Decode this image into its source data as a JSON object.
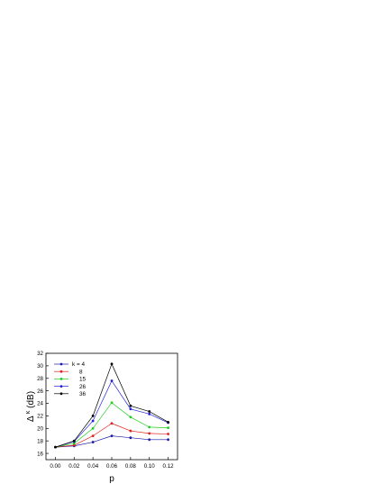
{
  "chart_data": {
    "type": "line",
    "xlabel": "p",
    "ylabel_main": "Δ",
    "ylabel_sup": "κ",
    "ylabel_rest": "(dB)",
    "x": [
      0.0,
      0.02,
      0.04,
      0.06,
      0.08,
      0.1,
      0.12
    ],
    "x_tick_labels": [
      "0.00",
      "0.02",
      "0.04",
      "0.06",
      "0.08",
      "0.10",
      "0.12"
    ],
    "y_ticks": [
      16,
      18,
      20,
      22,
      24,
      26,
      28,
      30,
      32
    ],
    "xlim": [
      -0.01,
      0.13
    ],
    "ylim": [
      15,
      32
    ],
    "grid": false,
    "legend_position": "top-left",
    "series": [
      {
        "name": "k = 4",
        "color": "#1a1aa8",
        "values": [
          17.0,
          17.2,
          17.8,
          18.8,
          18.5,
          18.2,
          18.2
        ]
      },
      {
        "name": "8",
        "color": "#e02020",
        "values": [
          17.0,
          17.3,
          18.8,
          20.8,
          19.6,
          19.2,
          19.1
        ]
      },
      {
        "name": "15",
        "color": "#22cc22",
        "values": [
          17.0,
          17.6,
          20.0,
          24.1,
          21.8,
          20.2,
          20.1
        ]
      },
      {
        "name": "26",
        "color": "#2222dd",
        "values": [
          17.0,
          17.9,
          21.2,
          27.6,
          23.1,
          22.3,
          20.9
        ]
      },
      {
        "name": "36",
        "color": "#000000",
        "values": [
          17.0,
          18.0,
          22.0,
          30.3,
          23.6,
          22.7,
          21.0
        ]
      }
    ]
  }
}
